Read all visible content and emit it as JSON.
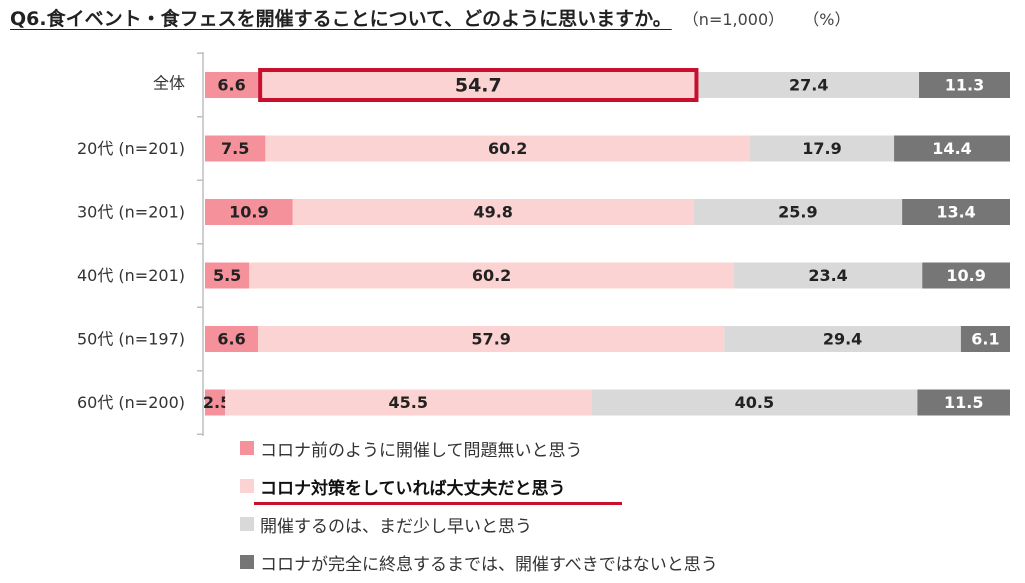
{
  "title": "Q6.食イベント・食フェスを開催することについて、どのように思いますか。",
  "sample_note": "（n=1,000）",
  "unit_note": "（%）",
  "legend": [
    {
      "label": "コロナ前のように開催して問題無いと思う",
      "color": "#f4919b",
      "emphasis": false
    },
    {
      "label": "コロナ対策をしていれば大丈夫だと思う",
      "color": "#fbd3d2",
      "emphasis": true
    },
    {
      "label": "開催するのは、まだ少し早いと思う",
      "color": "#d9d9d9",
      "emphasis": false
    },
    {
      "label": "コロナが完全に終息するまでは、開催すべきではないと思う",
      "color": "#767676",
      "emphasis": false
    }
  ],
  "chart_data": {
    "type": "bar",
    "orientation": "horizontal",
    "stacked": "100%",
    "categories": [
      "全体",
      "20代 (n=201)",
      "30代 (n=201)",
      "40代 (n=201)",
      "50代 (n=197)",
      "60代 (n=200)"
    ],
    "series": [
      {
        "name": "コロナ前のように開催して問題無いと思う",
        "color": "#f4919b",
        "values": [
          6.6,
          7.5,
          10.9,
          5.5,
          6.6,
          2.5
        ]
      },
      {
        "name": "コロナ対策をしていれば大丈夫だと思う",
        "color": "#fbd3d2",
        "values": [
          54.7,
          60.2,
          49.8,
          60.2,
          57.9,
          45.5
        ]
      },
      {
        "name": "開催するのは、まだ少し早いと思う",
        "color": "#d9d9d9",
        "values": [
          27.4,
          17.9,
          25.9,
          23.4,
          29.4,
          40.5
        ]
      },
      {
        "name": "コロナが完全に終息するまでは、開催すべきではないと思う",
        "color": "#767676",
        "values": [
          11.3,
          14.4,
          13.4,
          10.9,
          6.1,
          11.5
        ]
      }
    ],
    "highlight": {
      "category_index": 0,
      "series_index": 1,
      "color": "#c8102e"
    },
    "xlim": [
      0,
      100
    ],
    "legend_position": "bottom"
  }
}
